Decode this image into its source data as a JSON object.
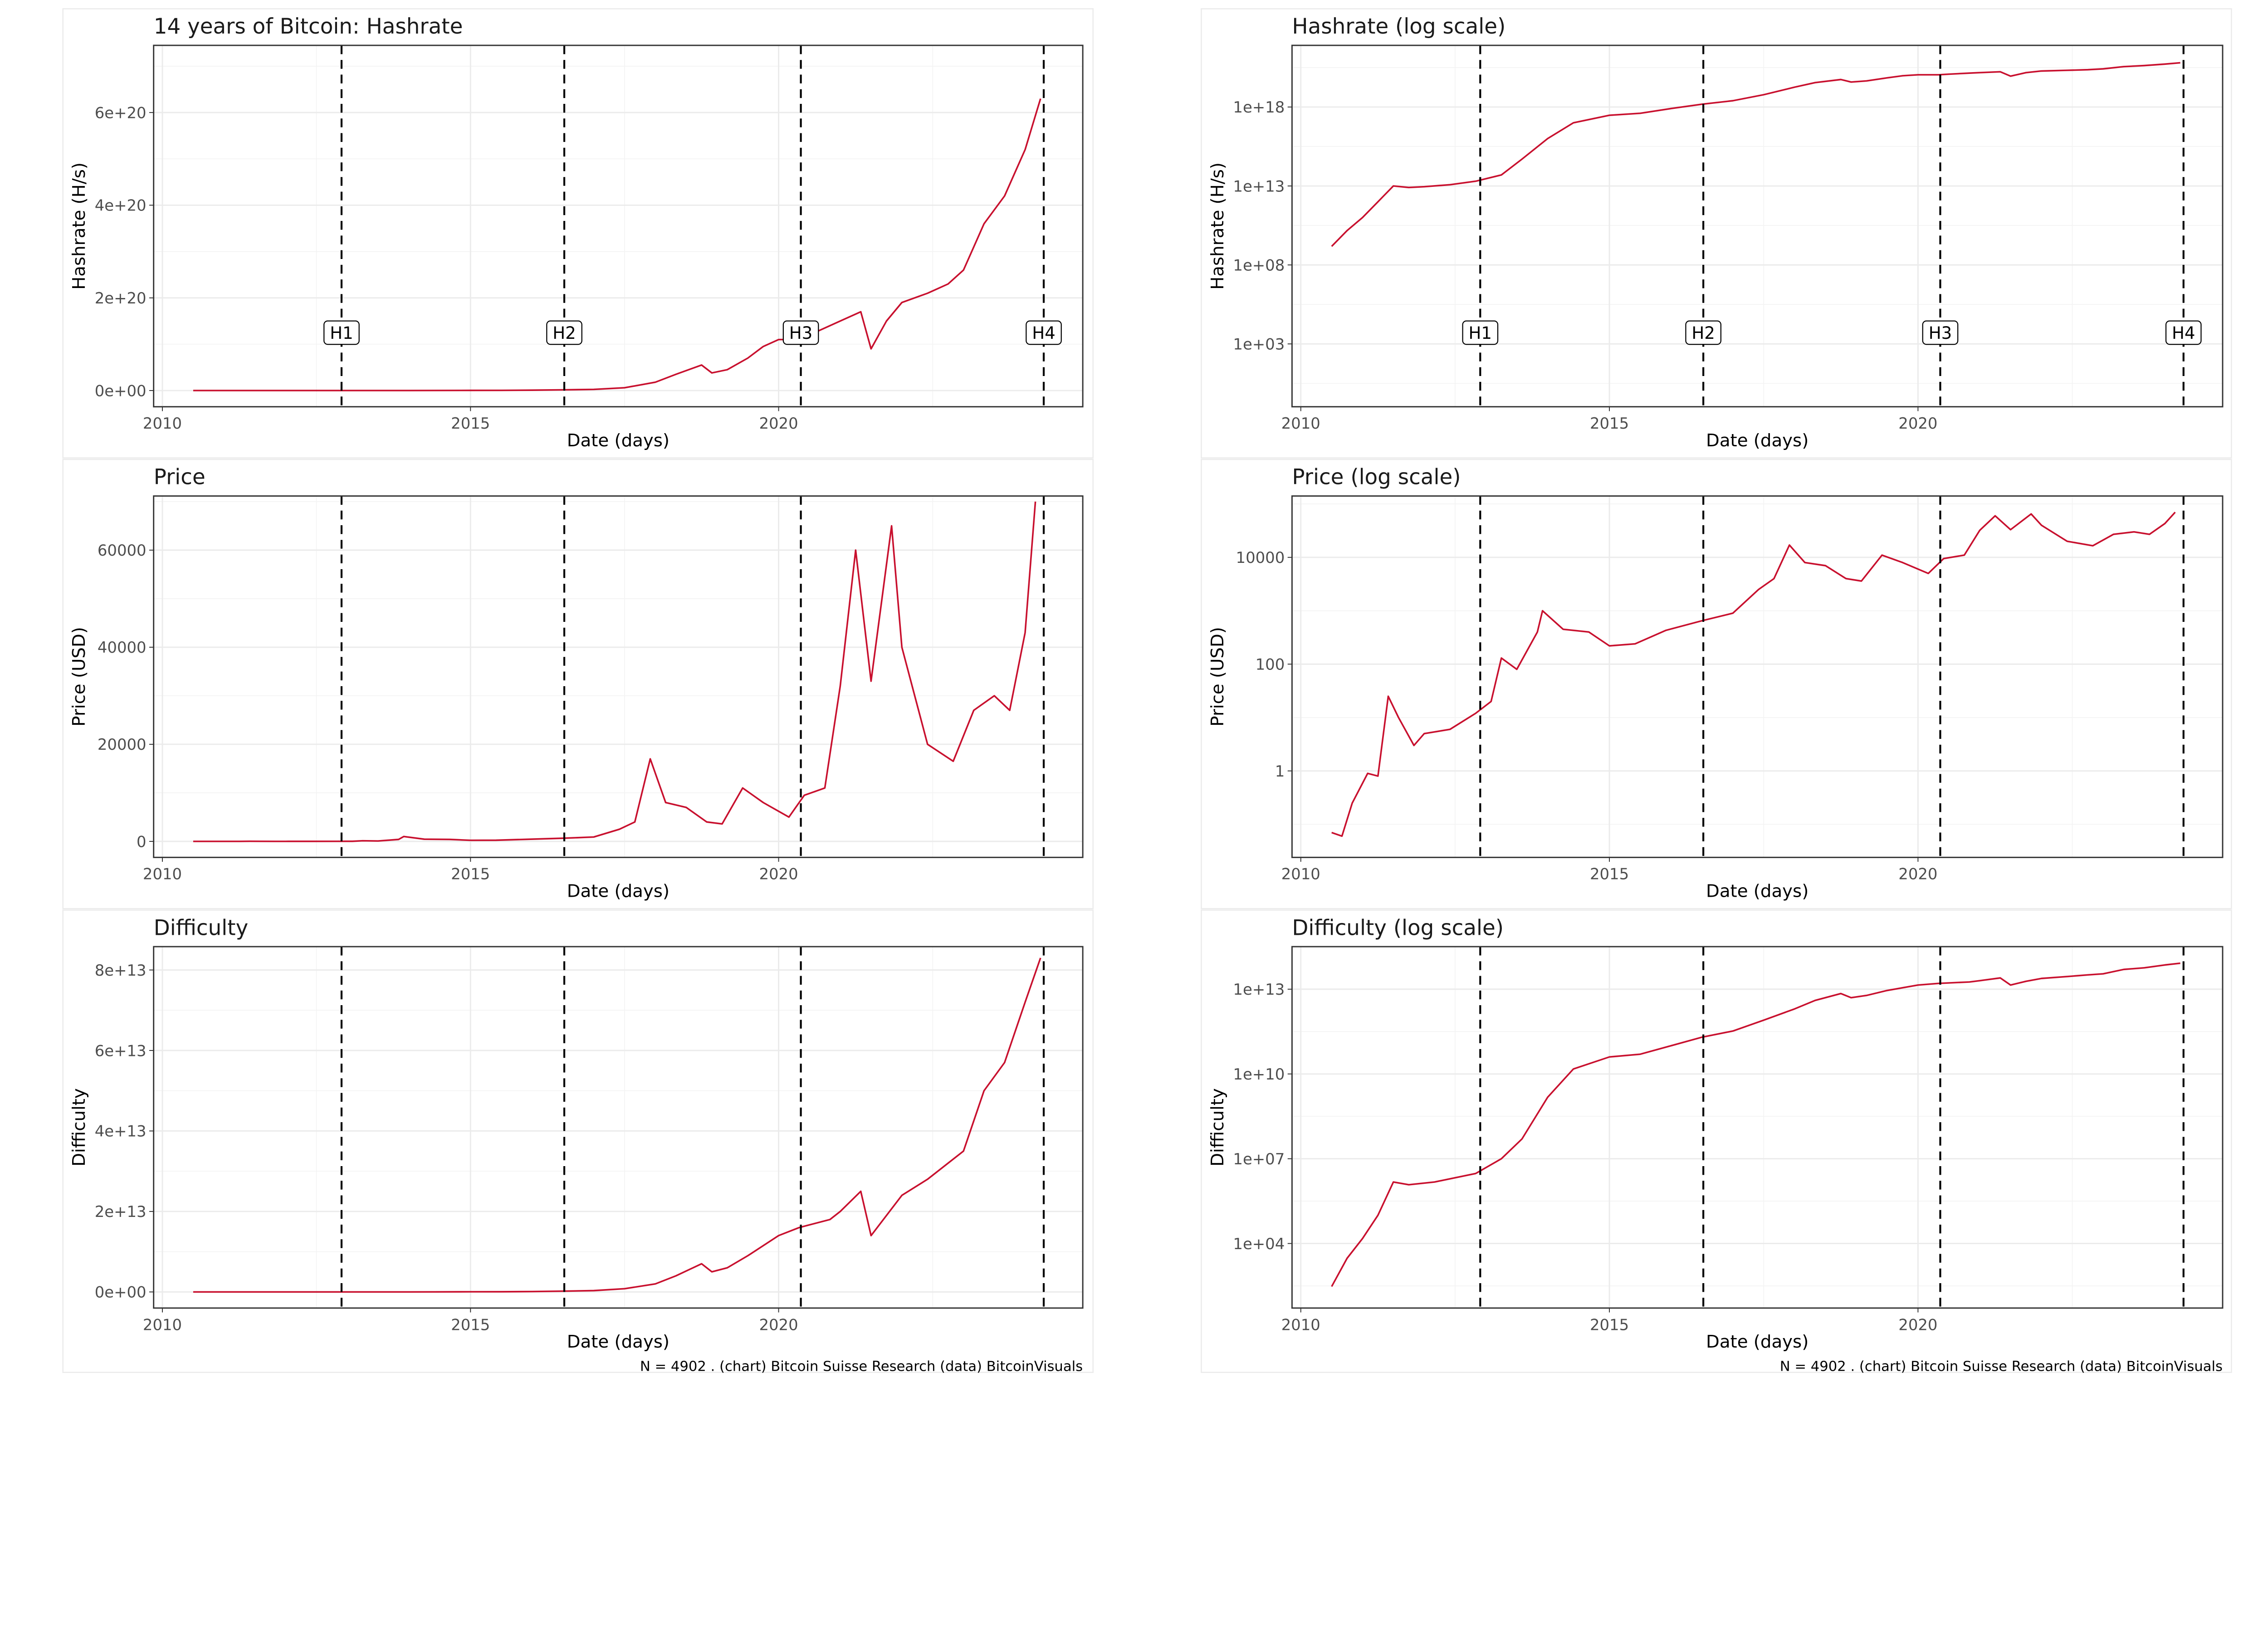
{
  "line_color": "#c8102e",
  "caption": "N = 4902 . (chart) Bitcoin Suisse Research (data) BitcoinVisuals",
  "halvings": [
    {
      "label": "H1",
      "date": "2012-11-28"
    },
    {
      "label": "H2",
      "date": "2016-07-09"
    },
    {
      "label": "H3",
      "date": "2020-05-11"
    },
    {
      "label": "H4",
      "date": "2024-04-20"
    }
  ],
  "x_axis": {
    "label": "Date (days)",
    "lim": [
      "2009-11-10",
      "2024-12-08"
    ],
    "ticks": [
      {
        "date": "2010-01-01",
        "label": "2010"
      },
      {
        "date": "2015-01-01",
        "label": "2015"
      },
      {
        "date": "2020-01-01",
        "label": "2020"
      }
    ]
  },
  "series": {
    "hashrate": {
      "dates": [
        "2010-07",
        "2010-10",
        "2011-01",
        "2011-04",
        "2011-07",
        "2011-10",
        "2012-01",
        "2012-06",
        "2012-11",
        "2013-04",
        "2013-08",
        "2014-01",
        "2014-06",
        "2015-01",
        "2015-07",
        "2016-01",
        "2016-07",
        "2017-01",
        "2017-07",
        "2018-01",
        "2018-05",
        "2018-10",
        "2018-12",
        "2019-03",
        "2019-07",
        "2019-10",
        "2020-01",
        "2020-05",
        "2020-07",
        "2020-11",
        "2021-01",
        "2021-05",
        "2021-07",
        "2021-10",
        "2022-01",
        "2022-06",
        "2022-10",
        "2023-01",
        "2023-05",
        "2023-09",
        "2024-01",
        "2024-04"
      ],
      "values": [
        1500000000.0,
        15000000000.0,
        100000000000.0,
        1000000000000.0,
        10000000000000.0,
        8000000000000.0,
        9000000000000.0,
        12000000000000.0,
        20000000000000.0,
        50000000000000.0,
        500000000000000.0,
        1e+16,
        1e+17,
        3e+17,
        4e+17,
        8e+17,
        1.5e+18,
        2.5e+18,
        6e+18,
        1.8e+19,
        3.5e+19,
        5.5e+19,
        3.8e+19,
        4.5e+19,
        7e+19,
        9.5e+19,
        1.1e+20,
        1.1e+20,
        1.2e+20,
        1.4e+20,
        1.5e+20,
        1.7e+20,
        9e+19,
        1.5e+20,
        1.9e+20,
        2.1e+20,
        2.3e+20,
        2.6e+20,
        3.6e+20,
        4.2e+20,
        5.2e+20,
        6.3e+20
      ]
    },
    "price": {
      "dates": [
        "2010-07",
        "2010-09",
        "2010-11",
        "2011-02",
        "2011-04",
        "2011-06",
        "2011-08",
        "2011-11",
        "2012-01",
        "2012-06",
        "2012-11",
        "2013-02",
        "2013-04",
        "2013-07",
        "2013-11",
        "2013-12",
        "2014-04",
        "2014-09",
        "2015-01",
        "2015-06",
        "2015-12",
        "2016-07",
        "2017-01",
        "2017-06",
        "2017-09",
        "2017-12",
        "2018-03",
        "2018-07",
        "2018-11",
        "2019-02",
        "2019-06",
        "2019-10",
        "2020-03",
        "2020-06",
        "2020-10",
        "2021-01",
        "2021-04",
        "2021-07",
        "2021-11",
        "2022-01",
        "2022-06",
        "2022-11",
        "2023-03",
        "2023-07",
        "2023-10",
        "2024-01",
        "2024-03"
      ],
      "values": [
        0.07,
        0.06,
        0.25,
        0.9,
        0.8,
        25,
        10,
        3,
        5,
        6,
        12,
        20,
        130,
        80,
        400,
        1000,
        450,
        400,
        220,
        240,
        430,
        650,
        900,
        2500,
        4000,
        17000,
        8000,
        7000,
        4000,
        3600,
        11000,
        8000,
        5000,
        9500,
        11000,
        32000,
        60000,
        33000,
        65000,
        40000,
        20000,
        16500,
        27000,
        30000,
        27000,
        43000,
        70000
      ]
    },
    "difficulty": {
      "dates": [
        "2010-07",
        "2010-10",
        "2011-01",
        "2011-04",
        "2011-07",
        "2011-10",
        "2012-03",
        "2012-11",
        "2013-04",
        "2013-08",
        "2014-01",
        "2014-06",
        "2015-01",
        "2015-07",
        "2016-01",
        "2016-07",
        "2017-01",
        "2017-07",
        "2018-01",
        "2018-05",
        "2018-10",
        "2018-12",
        "2019-03",
        "2019-07",
        "2020-01",
        "2020-05",
        "2020-11",
        "2021-01",
        "2021-05",
        "2021-07",
        "2021-10",
        "2022-01",
        "2022-06",
        "2022-10",
        "2023-01",
        "2023-05",
        "2023-09",
        "2024-01",
        "2024-04"
      ],
      "values": [
        300,
        3000,
        15000,
        100000,
        1500000,
        1200000,
        1500000,
        3000000,
        10000000,
        50000000,
        1500000000,
        15000000000,
        40000000000,
        50000000000,
        100000000000,
        200000000000,
        330000000000,
        800000000000,
        2000000000000,
        4000000000000,
        7000000000000,
        5000000000000,
        6000000000000,
        9000000000000,
        14000000000000,
        16000000000000,
        18000000000000,
        20000000000000,
        25000000000000,
        14000000000000,
        19000000000000,
        24000000000000,
        28000000000000,
        32000000000000,
        35000000000000,
        50000000000000,
        57000000000000,
        72000000000000,
        83000000000000
      ]
    }
  },
  "chart_data": [
    {
      "type": "line",
      "series_key": "hashrate",
      "title": "14 years of Bitcoin: Hashrate",
      "xlabel": "Date (days)",
      "ylabel": "Hashrate (H/s)",
      "yscale": "linear",
      "ylim": [
        -3.5e+19,
        7.45e+20
      ],
      "grid": true,
      "show_halving_labels": true,
      "yticks": [
        {
          "value": 0,
          "label": "0e+00"
        },
        {
          "value": 2e+20,
          "label": "2e+20"
        },
        {
          "value": 4e+20,
          "label": "4e+20"
        },
        {
          "value": 6e+20,
          "label": "6e+20"
        }
      ]
    },
    {
      "type": "line",
      "series_key": "hashrate",
      "title": "Hashrate (log scale)",
      "xlabel": "Date (days)",
      "ylabel": "Hashrate (H/s)",
      "yscale": "log",
      "ylim": [
        0.105,
        8e+21
      ],
      "grid": true,
      "show_halving_labels": true,
      "yticks": [
        {
          "value": 1000.0,
          "label": "1e+03"
        },
        {
          "value": 100000000.0,
          "label": "1e+08"
        },
        {
          "value": 10000000000000.0,
          "label": "1e+13"
        },
        {
          "value": 1e+18,
          "label": "1e+18"
        }
      ]
    },
    {
      "type": "line",
      "series_key": "price",
      "title": "Price",
      "xlabel": "Date (days)",
      "ylabel": "Price (USD)",
      "yscale": "linear",
      "ylim": [
        -3300,
        71150
      ],
      "grid": true,
      "show_halving_labels": false,
      "yticks": [
        {
          "value": 0,
          "label": "0"
        },
        {
          "value": 20000,
          "label": "20000"
        },
        {
          "value": 40000,
          "label": "40000"
        },
        {
          "value": 60000,
          "label": "60000"
        }
      ]
    },
    {
      "type": "line",
      "series_key": "price",
      "title": "Price (log scale)",
      "xlabel": "Date (days)",
      "ylabel": "Price (USD)",
      "yscale": "log",
      "ylim": [
        0.024,
        141000
      ],
      "grid": true,
      "show_halving_labels": false,
      "yticks": [
        {
          "value": 1,
          "label": "1"
        },
        {
          "value": 100,
          "label": "100"
        },
        {
          "value": 10000,
          "label": "10000"
        }
      ]
    },
    {
      "type": "line",
      "series_key": "difficulty",
      "title": "Difficulty",
      "xlabel": "Date (days)",
      "ylabel": "Difficulty",
      "yscale": "linear",
      "ylim": [
        -4000000000000.0,
        85800000000000.0
      ],
      "grid": true,
      "show_halving_labels": false,
      "caption": true,
      "yticks": [
        {
          "value": 0,
          "label": "0e+00"
        },
        {
          "value": 20000000000000.0,
          "label": "2e+13"
        },
        {
          "value": 40000000000000.0,
          "label": "4e+13"
        },
        {
          "value": 60000000000000.0,
          "label": "6e+13"
        },
        {
          "value": 80000000000000.0,
          "label": "8e+13"
        }
      ]
    },
    {
      "type": "line",
      "series_key": "difficulty",
      "title": "Difficulty (log scale)",
      "xlabel": "Date (days)",
      "ylabel": "Difficulty",
      "yscale": "log",
      "ylim": [
        52,
        320000000000000.0
      ],
      "grid": true,
      "show_halving_labels": false,
      "caption": true,
      "yticks": [
        {
          "value": 10000.0,
          "label": "1e+04"
        },
        {
          "value": 10000000.0,
          "label": "1e+07"
        },
        {
          "value": 10000000000.0,
          "label": "1e+10"
        },
        {
          "value": 10000000000000.0,
          "label": "1e+13"
        }
      ]
    }
  ]
}
